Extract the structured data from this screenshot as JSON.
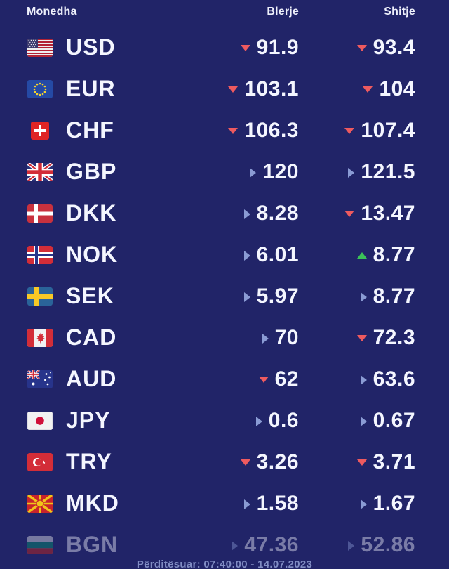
{
  "colors": {
    "background": "#212468",
    "text": "#f4f6ff",
    "header_text": "#eef0fb",
    "muted_text": "#9aa8dc",
    "trend_down": "#ee5a5f",
    "trend_up": "#3bc258",
    "trend_neutral": "#8a9bd4"
  },
  "header": {
    "currency": "Monedha",
    "buy": "Blerje",
    "sell": "Shitje"
  },
  "rows": [
    {
      "code": "USD",
      "flag": "us-flag-icon",
      "buy": "91.9",
      "buy_trend": "down",
      "sell": "93.4",
      "sell_trend": "down",
      "faded": false
    },
    {
      "code": "EUR",
      "flag": "eu-flag-icon",
      "buy": "103.1",
      "buy_trend": "down",
      "sell": "104",
      "sell_trend": "down",
      "faded": false
    },
    {
      "code": "CHF",
      "flag": "ch-flag-icon",
      "buy": "106.3",
      "buy_trend": "down",
      "sell": "107.4",
      "sell_trend": "down",
      "faded": false
    },
    {
      "code": "GBP",
      "flag": "gb-flag-icon",
      "buy": "120",
      "buy_trend": "neutral",
      "sell": "121.5",
      "sell_trend": "neutral",
      "faded": false
    },
    {
      "code": "DKK",
      "flag": "dk-flag-icon",
      "buy": "8.28",
      "buy_trend": "neutral",
      "sell": "13.47",
      "sell_trend": "down",
      "faded": false
    },
    {
      "code": "NOK",
      "flag": "no-flag-icon",
      "buy": "6.01",
      "buy_trend": "neutral",
      "sell": "8.77",
      "sell_trend": "up",
      "faded": false
    },
    {
      "code": "SEK",
      "flag": "se-flag-icon",
      "buy": "5.97",
      "buy_trend": "neutral",
      "sell": "8.77",
      "sell_trend": "neutral",
      "faded": false
    },
    {
      "code": "CAD",
      "flag": "ca-flag-icon",
      "buy": "70",
      "buy_trend": "neutral",
      "sell": "72.3",
      "sell_trend": "down",
      "faded": false
    },
    {
      "code": "AUD",
      "flag": "au-flag-icon",
      "buy": "62",
      "buy_trend": "down",
      "sell": "63.6",
      "sell_trend": "neutral",
      "faded": false
    },
    {
      "code": "JPY",
      "flag": "jp-flag-icon",
      "buy": "0.6",
      "buy_trend": "neutral",
      "sell": "0.67",
      "sell_trend": "neutral",
      "faded": false
    },
    {
      "code": "TRY",
      "flag": "tr-flag-icon",
      "buy": "3.26",
      "buy_trend": "down",
      "sell": "3.71",
      "sell_trend": "down",
      "faded": false
    },
    {
      "code": "MKD",
      "flag": "mk-flag-icon",
      "buy": "1.58",
      "buy_trend": "neutral",
      "sell": "1.67",
      "sell_trend": "neutral",
      "faded": false
    },
    {
      "code": "BGN",
      "flag": "bg-flag-icon",
      "buy": "47.36",
      "buy_trend": "neutral",
      "sell": "52.86",
      "sell_trend": "neutral",
      "faded": true
    }
  ],
  "footer": {
    "updated": "Përditësuar: 07:40:00 - 14.07.2023"
  }
}
